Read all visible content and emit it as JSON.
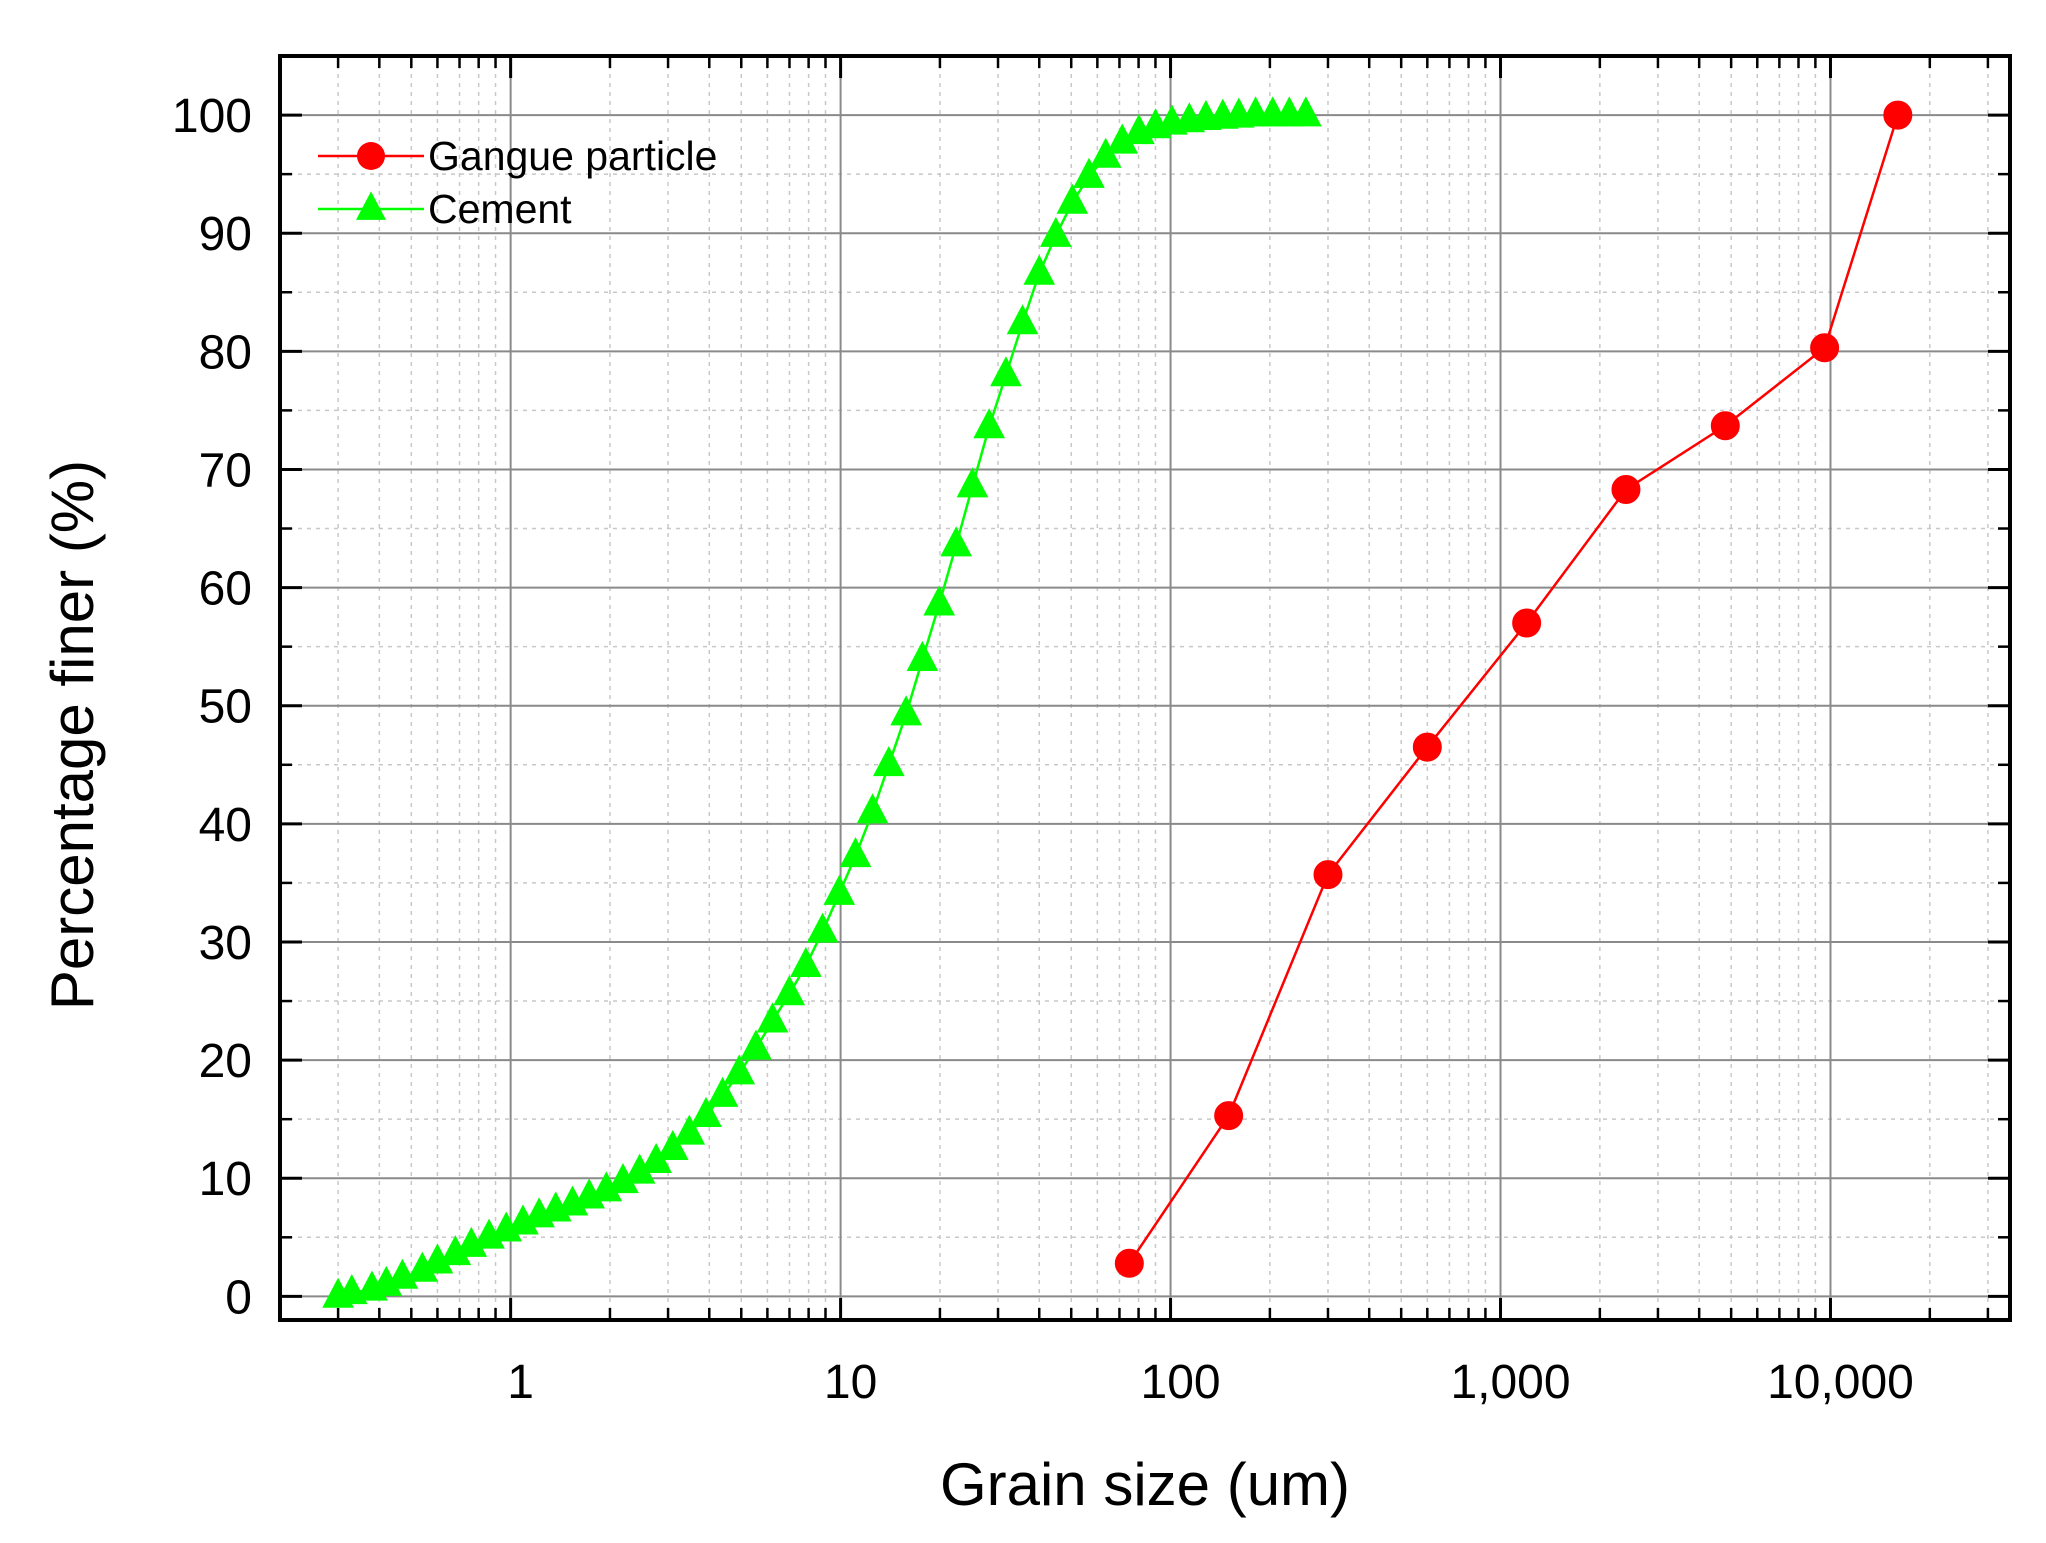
{
  "chart_data": {
    "type": "line",
    "title": "",
    "xlabel": "Grain size (um)",
    "ylabel": "Percentage finer (%)",
    "x_scale": "log",
    "xlim": [
      0.2,
      35000
    ],
    "ylim": [
      -2,
      105
    ],
    "x_ticks": [
      1,
      10,
      100,
      1000,
      10000
    ],
    "x_tick_labels": [
      "1",
      "10",
      "100",
      "1,000",
      "10,000"
    ],
    "y_ticks": [
      0,
      10,
      20,
      30,
      40,
      50,
      60,
      70,
      80,
      90,
      100
    ],
    "y_tick_labels": [
      "0",
      "10",
      "20",
      "30",
      "40",
      "50",
      "60",
      "70",
      "80",
      "90",
      "100"
    ],
    "grid": true,
    "legend_position": "top-left",
    "series": [
      {
        "name": "Gangue particle",
        "marker": "circle",
        "color": "#ff0000",
        "x": [
          75,
          150,
          300,
          600,
          1200,
          2400,
          4800,
          9600,
          16000
        ],
        "y": [
          2.8,
          15.3,
          35.7,
          46.5,
          57.0,
          68.3,
          73.7,
          80.3,
          100.0
        ]
      },
      {
        "name": "Cement",
        "marker": "triangle",
        "color": "#00ff00",
        "x": [
          0.3,
          0.33,
          0.38,
          0.42,
          0.47,
          0.54,
          0.6,
          0.68,
          0.76,
          0.86,
          0.97,
          1.09,
          1.22,
          1.37,
          1.54,
          1.73,
          1.95,
          2.19,
          2.46,
          2.76,
          3.1,
          3.48,
          3.91,
          4.39,
          4.93,
          5.54,
          6.22,
          6.99,
          7.85,
          8.82,
          9.91,
          11.1,
          12.5,
          14.0,
          15.8,
          17.7,
          19.9,
          22.4,
          25.1,
          28.2,
          31.7,
          35.6,
          40.0,
          44.9,
          50.4,
          56.6,
          63.6,
          71.4,
          80.2,
          90.1,
          101,
          114,
          128,
          144,
          161,
          181,
          204,
          229,
          257
        ],
        "y": [
          0,
          0.3,
          0.6,
          1.0,
          1.6,
          2.2,
          2.9,
          3.6,
          4.3,
          5.0,
          5.6,
          6.2,
          6.8,
          7.3,
          7.8,
          8.4,
          9.0,
          9.7,
          10.5,
          11.4,
          12.5,
          13.8,
          15.3,
          17.0,
          18.9,
          21.0,
          23.3,
          25.6,
          28.0,
          30.9,
          34.1,
          37.3,
          41.0,
          45.0,
          49.3,
          53.9,
          58.6,
          63.6,
          68.6,
          73.6,
          78.0,
          82.4,
          86.6,
          89.8,
          92.6,
          94.8,
          96.5,
          97.7,
          98.5,
          99.0,
          99.3,
          99.5,
          99.7,
          99.8,
          99.9,
          100.0,
          100.0,
          100.0,
          100.0
        ]
      }
    ]
  }
}
